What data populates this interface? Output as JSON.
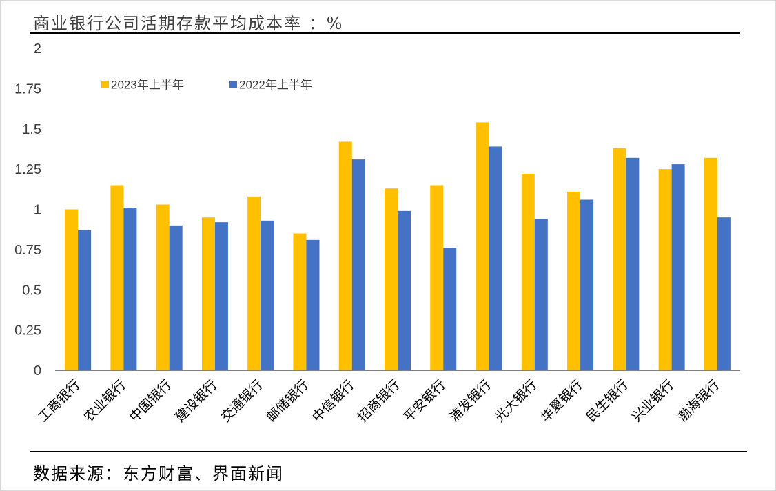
{
  "title": "商业银行公司活期存款平均成本率 ：%",
  "source": "数据来源：东方财富、界面新闻",
  "colors": {
    "series_2023": "#FFC000",
    "series_2022": "#4472C4",
    "axis": "#000000",
    "text": "#404040"
  },
  "chart_data": {
    "type": "bar",
    "title": "商业银行公司活期存款平均成本率 ：%",
    "xlabel": "",
    "ylabel": "",
    "categories": [
      "工商银行",
      "农业银行",
      "中国银行",
      "建设银行",
      "交通银行",
      "邮储银行",
      "中信银行",
      "招商银行",
      "平安银行",
      "浦发银行",
      "光大银行",
      "华夏银行",
      "民生银行",
      "兴业银行",
      "渤海银行"
    ],
    "series": [
      {
        "name": "2023年上半年",
        "color": "#FFC000",
        "values": [
          1.0,
          1.15,
          1.03,
          0.95,
          1.08,
          0.85,
          1.42,
          1.13,
          1.15,
          1.54,
          1.22,
          1.11,
          1.38,
          1.25,
          1.32
        ]
      },
      {
        "name": "2022年上半年",
        "color": "#4472C4",
        "values": [
          0.87,
          1.01,
          0.9,
          0.92,
          0.93,
          0.81,
          1.31,
          0.99,
          0.76,
          1.39,
          0.94,
          1.06,
          1.32,
          1.28,
          0.95
        ]
      }
    ],
    "ylim": [
      0,
      2
    ],
    "yticks": [
      "0",
      "0.25",
      "0.5",
      "0.75",
      "1",
      "1.25",
      "1.5",
      "1.75",
      "2"
    ],
    "grid": false,
    "legend_position": "top-left"
  }
}
